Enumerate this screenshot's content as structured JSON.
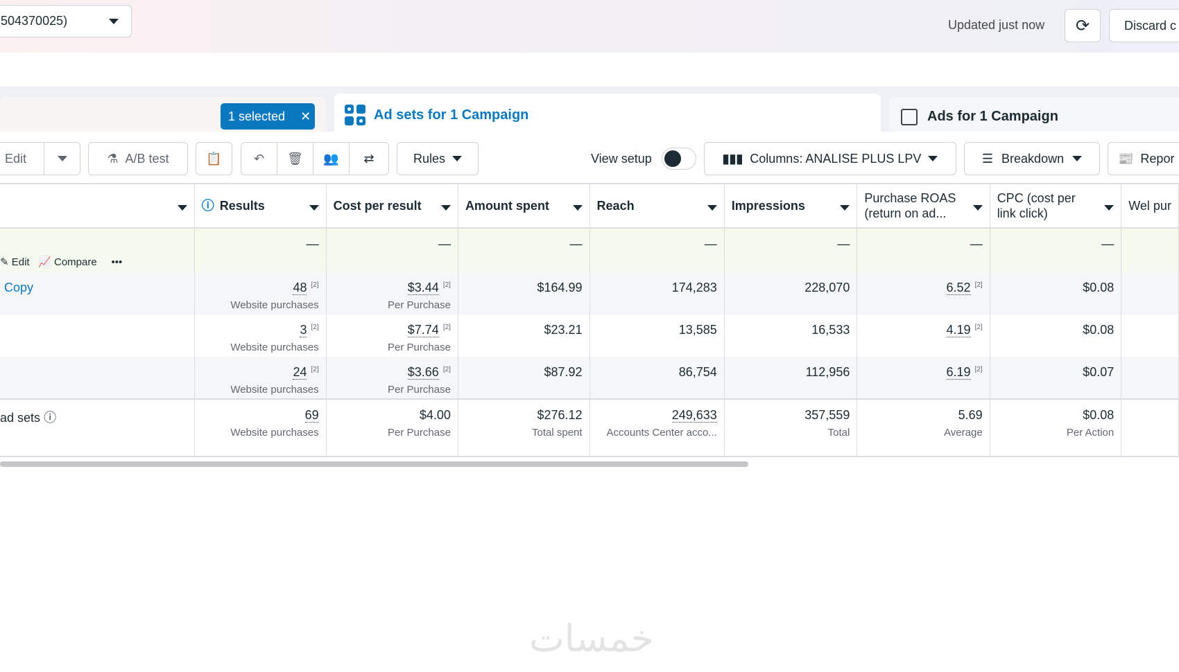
{
  "topbar": {
    "account_selector": "504370025)",
    "updated": "Updated just now",
    "discard": "Discard c"
  },
  "tabs": {
    "selected_badge": "1 selected",
    "adsets": "Ad sets for 1 Campaign",
    "ads": "Ads for 1 Campaign"
  },
  "toolbar": {
    "edit": "Edit",
    "ab_test": "A/B test",
    "rules": "Rules",
    "view_setup": "View setup",
    "columns": "Columns: ANALISE PLUS LPV",
    "breakdown": "Breakdown",
    "reports": "Repor"
  },
  "table": {
    "headers": [
      "Results",
      "Cost per result",
      "Amount spent",
      "Reach",
      "Impressions",
      "Purchase ROAS (return on ad...",
      "CPC (cost per link click)",
      "Wel pur"
    ],
    "hover_actions": {
      "edit": "Edit",
      "compare": "Compare",
      "more": "•••"
    },
    "dash": "—",
    "rows": [
      {
        "name": "Copy",
        "results": "48",
        "results_sub": "Website purchases",
        "cpr": "$3.44",
        "cpr_sub": "Per Purchase",
        "spent": "$164.99",
        "reach": "174,283",
        "impr": "228,070",
        "roas": "6.52",
        "cpc": "$0.08"
      },
      {
        "name": "",
        "results": "3",
        "results_sub": "Website purchases",
        "cpr": "$7.74",
        "cpr_sub": "Per Purchase",
        "spent": "$23.21",
        "reach": "13,585",
        "impr": "16,533",
        "roas": "4.19",
        "cpc": "$0.08"
      },
      {
        "name": "",
        "results": "24",
        "results_sub": "Website purchases",
        "cpr": "$3.66",
        "cpr_sub": "Per Purchase",
        "spent": "$87.92",
        "reach": "86,754",
        "impr": "112,956",
        "roas": "6.19",
        "cpc": "$0.07"
      }
    ],
    "footnote": "[2]",
    "total": {
      "name": "ad sets",
      "results": "69",
      "results_sub": "Website purchases",
      "cpr": "$4.00",
      "cpr_sub": "Per Purchase",
      "spent": "$276.12",
      "spent_sub": "Total spent",
      "reach": "249,633",
      "reach_sub": "Accounts Center acco...",
      "impr": "357,559",
      "impr_sub": "Total",
      "roas": "5.69",
      "roas_sub": "Average",
      "cpc": "$0.08",
      "cpc_sub": "Per Action"
    }
  },
  "watermark": "خمسات",
  "colors": {
    "accent": "#0a78be",
    "selected_badge": "#0a78be"
  }
}
